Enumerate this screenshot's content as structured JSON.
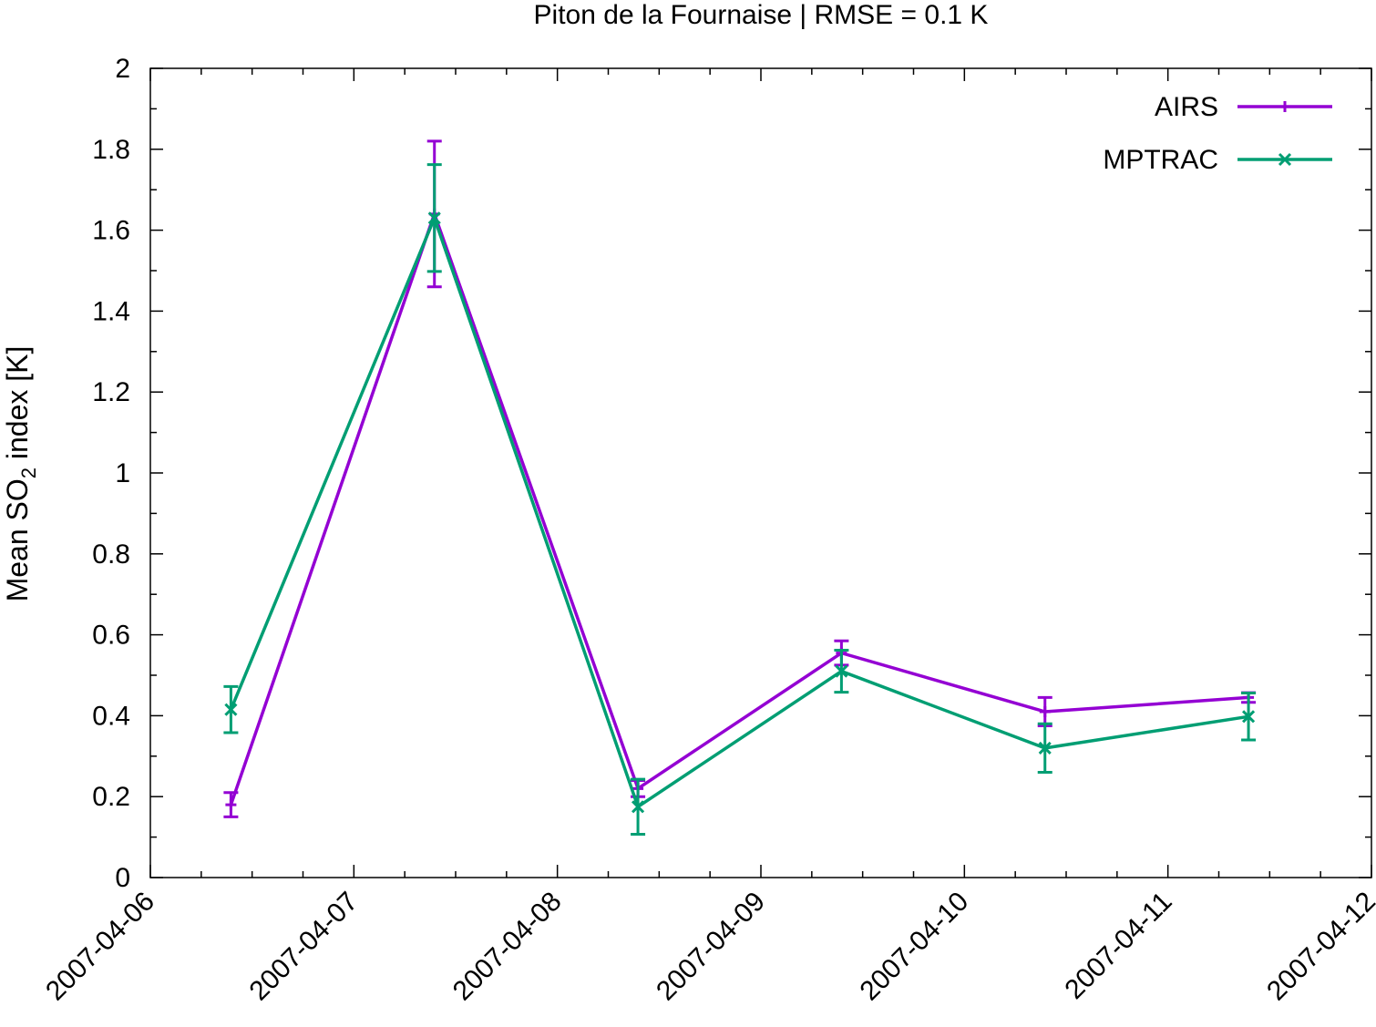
{
  "chart_data": {
    "type": "line",
    "title": "Piton de la Fournaise | RMSE = 0.1 K",
    "xlabel": "",
    "ylabel": {
      "prefix": "Mean SO",
      "subscript": "2",
      "suffix": " index [K]"
    },
    "xlim": [
      "2007-04-06",
      "2007-04-12"
    ],
    "ylim": [
      0,
      2
    ],
    "x_ticks": [
      "2007-04-06",
      "2007-04-07",
      "2007-04-08",
      "2007-04-09",
      "2007-04-10",
      "2007-04-11",
      "2007-04-12"
    ],
    "y_ticks": [
      "0",
      "0.2",
      "0.4",
      "0.6",
      "0.8",
      "1",
      "1.2",
      "1.4",
      "1.6",
      "1.8",
      "2"
    ],
    "grid": false,
    "legend_position": "top-right",
    "series": [
      {
        "name": "AIRS",
        "color": "#9400d3",
        "marker": "plus",
        "x": [
          "2007-04-06 09:30",
          "2007-04-07 09:30",
          "2007-04-08 09:30",
          "2007-04-09 09:30",
          "2007-04-10 09:30",
          "2007-04-11 09:30"
        ],
        "y": [
          0.18,
          1.64,
          0.22,
          0.555,
          0.41,
          0.445
        ],
        "err": [
          0.03,
          0.18,
          0.02,
          0.03,
          0.035,
          0.012
        ]
      },
      {
        "name": "MPTRAC",
        "color": "#009e73",
        "marker": "cross",
        "x": [
          "2007-04-06 09:30",
          "2007-04-07 09:30",
          "2007-04-08 09:30",
          "2007-04-09 09:30",
          "2007-04-10 09:30",
          "2007-04-11 09:30"
        ],
        "y": [
          0.415,
          1.63,
          0.175,
          0.51,
          0.32,
          0.398
        ],
        "err": [
          0.057,
          0.132,
          0.068,
          0.052,
          0.06,
          0.058
        ]
      }
    ]
  }
}
